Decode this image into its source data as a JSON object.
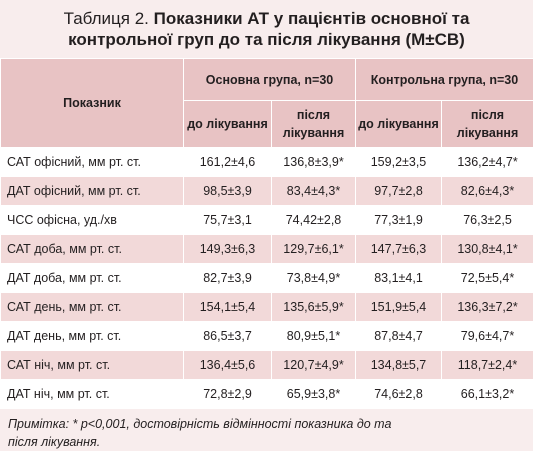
{
  "title": {
    "label": "Таблиця 2.",
    "text": "Показники АТ у пацієнтів основної та контрольної груп до та після лікування (М±СВ)"
  },
  "table": {
    "header": {
      "indicator": "Показник",
      "groups": [
        "Основна група, n=30",
        "Контрольна група, n=30"
      ],
      "periods": [
        "до лікування",
        "після лікування",
        "до лікування",
        "після лікування"
      ]
    },
    "rows": [
      [
        "САТ офісний, мм рт. ст.",
        "161,2±4,6",
        "136,8±3,9*",
        "159,2±3,5",
        "136,2±4,7*"
      ],
      [
        "ДАТ офісний, мм рт. ст.",
        "98,5±3,9",
        "83,4±4,3*",
        "97,7±2,8",
        "82,6±4,3*"
      ],
      [
        "ЧСС офісна, уд./хв",
        "75,7±3,1",
        "74,42±2,8",
        "77,3±1,9",
        "76,3±2,5"
      ],
      [
        "САТ доба, мм рт. ст.",
        "149,3±6,3",
        "129,7±6,1*",
        "147,7±6,3",
        "130,8±4,1*"
      ],
      [
        "ДАТ доба, мм рт. ст.",
        "82,7±3,9",
        "73,8±4,9*",
        "83,1±4,1",
        "72,5±5,4*"
      ],
      [
        "САТ день, мм рт. ст.",
        "154,1±5,4",
        "135,6±5,9*",
        "151,9±5,4",
        "136,3±7,2*"
      ],
      [
        "ДАТ день, мм рт. ст.",
        "86,5±3,7",
        "80,9±5,1*",
        "87,8±4,7",
        "79,6±4,7*"
      ],
      [
        "САТ ніч, мм рт. ст.",
        "136,4±5,6",
        "120,7±4,9*",
        "134,8±5,7",
        "118,7±2,4*"
      ],
      [
        "ДАТ ніч, мм рт. ст.",
        "72,8±2,9",
        "65,9±3,8*",
        "74,6±2,8",
        "66,1±3,2*"
      ]
    ]
  },
  "note": "Примітка: * p<0,001, достовірність відмінності показника до та після лікування."
}
